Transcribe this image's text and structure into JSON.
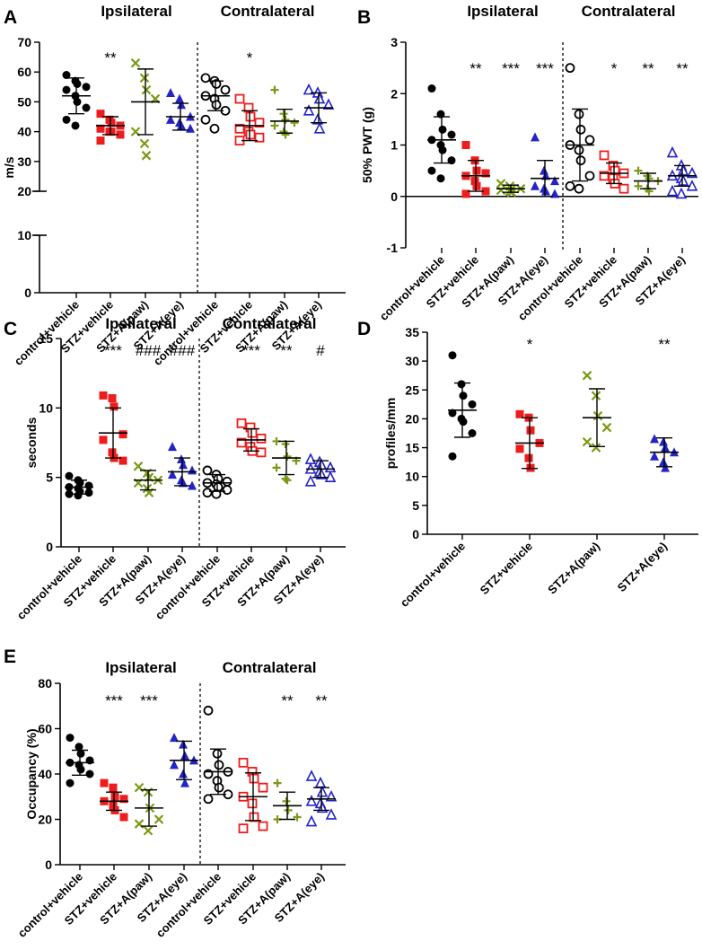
{
  "groups": [
    "control+vehicle",
    "STZ+vehicle",
    "STZ+A(paw)",
    "STZ+A(eye)"
  ],
  "colors": {
    "control": "#000000",
    "stz": "#ee1c1c",
    "paw": "#7a9a17",
    "eye": "#2323c8"
  },
  "chart_data": [
    {
      "panel": "A",
      "type": "scatter",
      "ylabel": "m/s",
      "titles": [
        "Ipsilateral",
        "Contralateral"
      ],
      "y_ticks": [
        "70",
        "60",
        "50",
        "40",
        "30",
        "20",
        "10",
        "0"
      ],
      "axis_break": true,
      "series": [
        {
          "name": "control+vehicle",
          "side": "Ipsilateral",
          "marker": "filled-circle",
          "mean": 52,
          "sd": 6,
          "values": [
            59,
            57,
            56,
            55,
            54,
            52,
            50,
            48,
            44,
            42
          ],
          "sig": ""
        },
        {
          "name": "STZ+vehicle",
          "side": "Ipsilateral",
          "marker": "filled-square",
          "mean": 42,
          "sd": 3,
          "values": [
            46,
            44,
            43,
            42,
            41,
            40,
            40,
            39,
            37
          ],
          "sig": "**"
        },
        {
          "name": "STZ+A(paw)",
          "side": "Ipsilateral",
          "marker": "cross",
          "mean": 50,
          "sd": 11,
          "values": [
            63,
            58,
            54,
            51,
            40,
            36,
            32
          ],
          "sig": ""
        },
        {
          "name": "STZ+A(eye)",
          "side": "Ipsilateral",
          "marker": "filled-triangle",
          "mean": 45,
          "sd": 4.5,
          "values": [
            53,
            51,
            49,
            45,
            44,
            43,
            42,
            41
          ],
          "sig": ""
        },
        {
          "name": "control+vehicle",
          "side": "Contralateral",
          "marker": "open-circle",
          "mean": 52,
          "sd": 5,
          "values": [
            58,
            57,
            56,
            54,
            52,
            51,
            49,
            47,
            44,
            41
          ],
          "sig": ""
        },
        {
          "name": "STZ+vehicle",
          "side": "Contralateral",
          "marker": "open-square",
          "mean": 42,
          "sd": 5,
          "values": [
            51,
            48,
            45,
            43,
            41,
            40,
            39,
            38,
            37
          ],
          "sig": "*"
        },
        {
          "name": "STZ+A(paw)",
          "side": "Contralateral",
          "marker": "plus",
          "mean": 43.5,
          "sd": 4,
          "values": [
            54,
            46,
            44,
            43,
            42,
            40,
            39
          ],
          "sig": ""
        },
        {
          "name": "STZ+A(eye)",
          "side": "Contralateral",
          "marker": "open-triangle",
          "mean": 48,
          "sd": 5,
          "values": [
            54,
            53,
            51,
            49,
            47,
            44,
            41
          ],
          "sig": ""
        }
      ]
    },
    {
      "panel": "B",
      "type": "scatter",
      "ylabel": "50% PWT (g)",
      "titles": [
        "Ipsilateral",
        "Contralateral"
      ],
      "y_ticks": [
        "3",
        "2",
        "1",
        "0",
        "-1"
      ],
      "series": [
        {
          "name": "control+vehicle",
          "side": "Ipsilateral",
          "marker": "filled-circle",
          "mean": 1.1,
          "sd": 0.45,
          "values": [
            2.1,
            1.6,
            1.3,
            1.2,
            1.1,
            1.0,
            0.9,
            0.7,
            0.5,
            0.35
          ],
          "sig": ""
        },
        {
          "name": "STZ+vehicle",
          "side": "Ipsilateral",
          "marker": "filled-square",
          "mean": 0.4,
          "sd": 0.3,
          "values": [
            1.0,
            0.7,
            0.5,
            0.45,
            0.4,
            0.3,
            0.2,
            0.1,
            0.05
          ],
          "sig": "**"
        },
        {
          "name": "STZ+A(paw)",
          "side": "Ipsilateral",
          "marker": "cross",
          "mean": 0.15,
          "sd": 0.07,
          "values": [
            0.25,
            0.2,
            0.15,
            0.15,
            0.12,
            0.1,
            0.08
          ],
          "sig": "***"
        },
        {
          "name": "STZ+A(eye)",
          "side": "Ipsilateral",
          "marker": "filled-triangle",
          "mean": 0.35,
          "sd": 0.35,
          "values": [
            1.15,
            0.5,
            0.4,
            0.3,
            0.2,
            0.15,
            0.1,
            0.05
          ],
          "sig": "***"
        },
        {
          "name": "control+vehicle",
          "side": "Contralateral",
          "marker": "open-circle",
          "mean": 1.0,
          "sd": 0.7,
          "values": [
            2.5,
            1.6,
            1.3,
            1.1,
            1.0,
            0.9,
            0.7,
            0.4,
            0.2,
            0.15
          ],
          "sig": ""
        },
        {
          "name": "STZ+vehicle",
          "side": "Contralateral",
          "marker": "open-square",
          "mean": 0.45,
          "sd": 0.2,
          "values": [
            0.8,
            0.6,
            0.5,
            0.45,
            0.4,
            0.35,
            0.25,
            0.15
          ],
          "sig": "*"
        },
        {
          "name": "STZ+A(paw)",
          "side": "Contralateral",
          "marker": "plus",
          "mean": 0.3,
          "sd": 0.15,
          "values": [
            0.5,
            0.4,
            0.35,
            0.3,
            0.2,
            0.15,
            0.1
          ],
          "sig": "**"
        },
        {
          "name": "STZ+A(eye)",
          "side": "Contralateral",
          "marker": "open-triangle",
          "mean": 0.4,
          "sd": 0.2,
          "values": [
            0.85,
            0.6,
            0.5,
            0.45,
            0.4,
            0.35,
            0.3,
            0.2,
            0.1,
            0.05
          ],
          "sig": "**"
        }
      ]
    },
    {
      "panel": "C",
      "type": "scatter",
      "ylabel": "seconds",
      "titles": [
        "Ipsilateral",
        "Contralateral"
      ],
      "y_ticks": [
        "15",
        "10",
        "5",
        "0"
      ],
      "series": [
        {
          "name": "control+vehicle",
          "side": "Ipsilateral",
          "marker": "filled-circle",
          "mean": 4.3,
          "sd": 0.5,
          "values": [
            5.1,
            4.8,
            4.6,
            4.4,
            4.3,
            4.2,
            4.0,
            3.9,
            3.8,
            3.7
          ],
          "sig": ""
        },
        {
          "name": "STZ+vehicle",
          "side": "Ipsilateral",
          "marker": "filled-square",
          "mean": 8.2,
          "sd": 1.8,
          "values": [
            10.9,
            10.7,
            10.1,
            8.1,
            7.7,
            6.8,
            6.4,
            6.2
          ],
          "sig": "***"
        },
        {
          "name": "STZ+A(paw)",
          "side": "Ipsilateral",
          "marker": "cross",
          "mean": 4.8,
          "sd": 0.7,
          "values": [
            5.8,
            5.3,
            5.0,
            4.8,
            4.6,
            4.2,
            3.9
          ],
          "sig": "###"
        },
        {
          "name": "STZ+A(eye)",
          "side": "Ipsilateral",
          "marker": "filled-triangle",
          "mean": 5.4,
          "sd": 1.0,
          "values": [
            7.2,
            6.3,
            5.9,
            5.5,
            5.2,
            4.8,
            4.6,
            4.4
          ],
          "sig": "###"
        },
        {
          "name": "control+vehicle",
          "side": "Contralateral",
          "marker": "open-circle",
          "mean": 4.6,
          "sd": 0.6,
          "values": [
            5.5,
            5.2,
            4.9,
            4.7,
            4.6,
            4.5,
            4.3,
            4.1,
            3.9,
            3.8
          ],
          "sig": ""
        },
        {
          "name": "STZ+vehicle",
          "side": "Contralateral",
          "marker": "open-square",
          "mean": 7.7,
          "sd": 0.8,
          "values": [
            8.9,
            8.6,
            8.2,
            7.8,
            7.5,
            7.2,
            6.9,
            6.8
          ],
          "sig": "***"
        },
        {
          "name": "STZ+A(paw)",
          "side": "Contralateral",
          "marker": "plus",
          "mean": 6.4,
          "sd": 1.2,
          "values": [
            7.6,
            7.4,
            6.5,
            6.2,
            5.7,
            4.9,
            4.8
          ],
          "sig": "**"
        },
        {
          "name": "STZ+A(eye)",
          "side": "Contralateral",
          "marker": "open-triangle",
          "mean": 5.6,
          "sd": 0.6,
          "values": [
            6.3,
            6.1,
            5.9,
            5.7,
            5.6,
            5.4,
            5.2,
            5.0,
            4.7
          ],
          "sig": "#"
        }
      ]
    },
    {
      "panel": "D",
      "type": "scatter",
      "ylabel": "profiles/mm",
      "titles": [],
      "y_ticks": [
        "35",
        "30",
        "25",
        "20",
        "15",
        "10",
        "5",
        "0"
      ],
      "series": [
        {
          "name": "control+vehicle",
          "marker": "filled-circle",
          "mean": 21.5,
          "sd": 4.7,
          "values": [
            31,
            26,
            24,
            22.5,
            21,
            20,
            19.5,
            17.5,
            13.5
          ],
          "sig": ""
        },
        {
          "name": "STZ+vehicle",
          "marker": "filled-square",
          "mean": 15.8,
          "sd": 4.4,
          "values": [
            20.8,
            20.2,
            18,
            15.8,
            14.8,
            13.2,
            11.5
          ],
          "sig": "*"
        },
        {
          "name": "STZ+A(paw)",
          "marker": "cross",
          "mean": 20.2,
          "sd": 5,
          "values": [
            27.5,
            24,
            20.5,
            18.5,
            16,
            15
          ],
          "sig": ""
        },
        {
          "name": "STZ+A(eye)",
          "marker": "filled-triangle",
          "mean": 14.2,
          "sd": 2.5,
          "values": [
            16.5,
            16,
            15,
            14.2,
            13.5,
            12.5,
            11.5
          ],
          "sig": "**"
        }
      ]
    },
    {
      "panel": "E",
      "type": "scatter",
      "ylabel": "Occupancy (%)",
      "titles": [
        "Ipsilateral",
        "Contralateral"
      ],
      "y_ticks": [
        "80",
        "60",
        "40",
        "20",
        "0"
      ],
      "series": [
        {
          "name": "control+vehicle",
          "side": "Ipsilateral",
          "marker": "filled-circle",
          "mean": 45,
          "sd": 5.5,
          "values": [
            56,
            52,
            49,
            46,
            45,
            44,
            42,
            40,
            36
          ],
          "sig": ""
        },
        {
          "name": "STZ+vehicle",
          "side": "Ipsilateral",
          "marker": "filled-square",
          "mean": 28,
          "sd": 4,
          "values": [
            36,
            34,
            30,
            29,
            28,
            26,
            24,
            21
          ],
          "sig": "***"
        },
        {
          "name": "STZ+A(paw)",
          "side": "Ipsilateral",
          "marker": "cross",
          "mean": 25,
          "sd": 8,
          "values": [
            34,
            32,
            25,
            20,
            18,
            15
          ],
          "sig": "***"
        },
        {
          "name": "STZ+A(eye)",
          "side": "Ipsilateral",
          "marker": "filled-triangle",
          "mean": 46,
          "sd": 8.5,
          "values": [
            56,
            53,
            48,
            46,
            44,
            40,
            36
          ],
          "sig": ""
        },
        {
          "name": "control+vehicle",
          "side": "Contralateral",
          "marker": "open-circle",
          "mean": 41,
          "sd": 10,
          "values": [
            68,
            49,
            44,
            41,
            40,
            37,
            34,
            31,
            29
          ],
          "sig": ""
        },
        {
          "name": "STZ+vehicle",
          "side": "Contralateral",
          "marker": "open-square",
          "mean": 30,
          "sd": 10.5,
          "values": [
            45,
            41,
            38,
            34,
            30,
            27,
            21,
            17,
            16
          ],
          "sig": ""
        },
        {
          "name": "STZ+A(paw)",
          "side": "Contralateral",
          "marker": "plus",
          "mean": 26,
          "sd": 6,
          "values": [
            36,
            28,
            24,
            21,
            20
          ],
          "sig": "**"
        },
        {
          "name": "STZ+A(eye)",
          "side": "Contralateral",
          "marker": "open-triangle",
          "mean": 29,
          "sd": 5,
          "values": [
            39,
            36,
            32,
            30,
            28,
            27,
            25,
            22,
            19
          ],
          "sig": "**"
        }
      ]
    }
  ]
}
